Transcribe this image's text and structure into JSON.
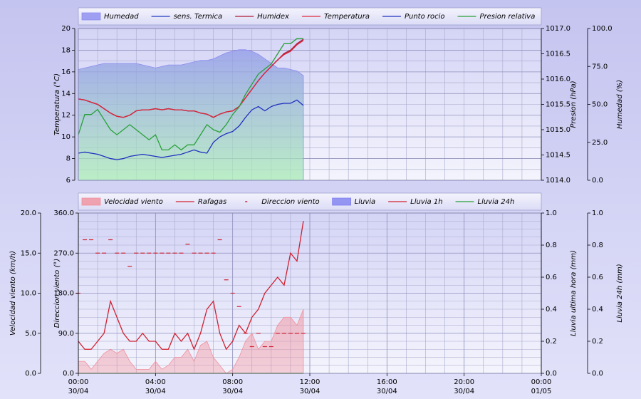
{
  "chart_data": [
    {
      "type": "line",
      "x": [
        0,
        20,
        40,
        60,
        80,
        100,
        120,
        140,
        160,
        180,
        200,
        220,
        240,
        260,
        280,
        300,
        320,
        340,
        360,
        380,
        400,
        420,
        440,
        460,
        480,
        500,
        520,
        540,
        560,
        580,
        600,
        620,
        640,
        660,
        680,
        700
      ],
      "xlim": [
        0,
        1440
      ],
      "grid": true,
      "axes": [
        {
          "label": "Temperatura (°C)",
          "lim": [
            6,
            20
          ],
          "ticks": [
            6,
            8,
            10,
            12,
            14,
            16,
            18,
            20
          ]
        },
        {
          "label": "Presion (hPa)",
          "lim": [
            1014,
            1017
          ],
          "ticks": [
            {
              "value": 1014,
              "label": "1014.0"
            },
            {
              "value": 1014.5,
              "label": "1014.5"
            },
            {
              "value": 1015,
              "label": "1015.0"
            },
            {
              "value": 1015.5,
              "label": "1015.5"
            },
            {
              "value": 1016,
              "label": "1016.0"
            },
            {
              "value": 1016.5,
              "label": "1016.5"
            },
            {
              "value": 1017,
              "label": "1017.0"
            }
          ]
        },
        {
          "label": "Humedad (%)",
          "lim": [
            0,
            100
          ],
          "ticks": [
            {
              "value": 0,
              "label": "0.0"
            },
            {
              "value": 25,
              "label": "25.0"
            },
            {
              "value": 50,
              "label": "50.0"
            },
            {
              "value": 75,
              "label": "75.0"
            },
            {
              "value": 100,
              "label": "100.0"
            }
          ]
        }
      ],
      "series": [
        {
          "name": "Humedad",
          "kind": "area",
          "axis": 2,
          "color": "#8c8cf0",
          "color2": "#a8ecb4",
          "values": [
            73,
            74,
            75,
            76,
            77,
            77,
            77,
            77,
            77,
            77,
            76,
            75,
            74,
            75,
            76,
            76,
            76,
            77,
            78,
            79,
            79,
            80,
            82,
            84,
            85,
            86,
            86,
            85,
            83,
            80,
            77,
            74,
            74,
            73,
            72,
            69
          ]
        },
        {
          "name": "sens. Termica",
          "kind": "line",
          "axis": 0,
          "color": "#2038c0",
          "values": [
            13.5,
            13.4,
            13.2,
            13.0,
            12.6,
            12.2,
            11.9,
            11.8,
            12.0,
            12.4,
            12.5,
            12.5,
            12.6,
            12.5,
            12.6,
            12.5,
            12.5,
            12.4,
            12.4,
            12.2,
            12.1,
            11.8,
            12.1,
            12.3,
            12.4,
            12.8,
            13.6,
            14.4,
            15.2,
            15.9,
            16.5,
            17.1,
            17.6,
            17.9,
            18.5,
            18.9
          ]
        },
        {
          "name": "Humidex",
          "kind": "line",
          "axis": 0,
          "color": "#b01830",
          "values": [
            13.5,
            13.4,
            13.2,
            13.0,
            12.6,
            12.2,
            11.9,
            11.8,
            12.0,
            12.4,
            12.5,
            12.5,
            12.6,
            12.5,
            12.6,
            12.5,
            12.5,
            12.4,
            12.4,
            12.2,
            12.1,
            11.8,
            12.1,
            12.3,
            12.4,
            12.8,
            13.6,
            14.4,
            15.2,
            15.9,
            16.5,
            17.1,
            17.7,
            18.0,
            18.6,
            19.0
          ]
        },
        {
          "name": "Temperatura",
          "kind": "line",
          "axis": 0,
          "color": "#e02838",
          "values": [
            13.5,
            13.4,
            13.2,
            13.0,
            12.6,
            12.2,
            11.9,
            11.8,
            12.0,
            12.4,
            12.5,
            12.5,
            12.6,
            12.5,
            12.6,
            12.5,
            12.5,
            12.4,
            12.4,
            12.2,
            12.1,
            11.8,
            12.1,
            12.3,
            12.4,
            12.8,
            13.6,
            14.4,
            15.2,
            15.9,
            16.5,
            17.1,
            17.6,
            17.9,
            18.5,
            18.9
          ]
        },
        {
          "name": "Punto rocio",
          "kind": "line",
          "axis": 0,
          "color": "#2030c0",
          "values": [
            8.5,
            8.6,
            8.5,
            8.4,
            8.2,
            8.0,
            7.9,
            8.0,
            8.2,
            8.3,
            8.4,
            8.3,
            8.2,
            8.1,
            8.2,
            8.3,
            8.4,
            8.6,
            8.8,
            8.6,
            8.5,
            9.5,
            10.0,
            10.3,
            10.5,
            11.0,
            11.8,
            12.5,
            12.8,
            12.4,
            12.8,
            13.0,
            13.1,
            13.1,
            13.4,
            12.9
          ]
        },
        {
          "name": "Presion relativa",
          "kind": "line",
          "axis": 1,
          "color": "#28a038",
          "values": [
            1014.9,
            1015.3,
            1015.3,
            1015.4,
            1015.2,
            1015.0,
            1014.9,
            1015.0,
            1015.1,
            1015.0,
            1014.9,
            1014.8,
            1014.9,
            1014.6,
            1014.6,
            1014.7,
            1014.6,
            1014.7,
            1014.7,
            1014.9,
            1015.1,
            1015.0,
            1014.95,
            1015.1,
            1015.3,
            1015.45,
            1015.7,
            1015.9,
            1016.1,
            1016.2,
            1016.3,
            1016.5,
            1016.7,
            1016.7,
            1016.8,
            1016.8
          ]
        }
      ]
    },
    {
      "type": "line",
      "x": [
        0,
        20,
        40,
        60,
        80,
        100,
        120,
        140,
        160,
        180,
        200,
        220,
        240,
        260,
        280,
        300,
        320,
        340,
        360,
        380,
        400,
        420,
        440,
        460,
        480,
        500,
        520,
        540,
        560,
        580,
        600,
        620,
        640,
        660,
        680,
        700
      ],
      "xlim": [
        0,
        1440
      ],
      "xticks": [
        {
          "value": 0,
          "label": "00:00\n30/04"
        },
        {
          "value": 240,
          "label": "04:00\n30/04"
        },
        {
          "value": 480,
          "label": "08:00\n30/04"
        },
        {
          "value": 720,
          "label": "12:00\n30/04"
        },
        {
          "value": 960,
          "label": "16:00\n30/04"
        },
        {
          "value": 1200,
          "label": "20:00\n30/04"
        },
        {
          "value": 1440,
          "label": "00:00\n01/05"
        }
      ],
      "grid": true,
      "axes": [
        {
          "label": "Velocidad viento (km/h)",
          "lim": [
            0,
            20
          ],
          "ticks": [
            {
              "value": 0,
              "label": "0.0"
            },
            {
              "value": 5,
              "label": "5.0"
            },
            {
              "value": 10,
              "label": "10.0"
            },
            {
              "value": 15,
              "label": "15.0"
            },
            {
              "value": 20,
              "label": "20.0"
            }
          ]
        },
        {
          "label": "Direccion viento (°)",
          "lim": [
            0,
            360
          ],
          "ticks": [
            {
              "value": 0,
              "label": "0.0"
            },
            {
              "value": 90,
              "label": "90.0"
            },
            {
              "value": 180,
              "label": "180.0"
            },
            {
              "value": 270,
              "label": "270.0"
            },
            {
              "value": 360,
              "label": "360.0"
            }
          ]
        },
        {
          "label": "Lluvia ultima hora (mm)",
          "lim": [
            0,
            1
          ],
          "ticks": [
            {
              "value": 0,
              "label": "0.0"
            },
            {
              "value": 0.2,
              "label": "0.2"
            },
            {
              "value": 0.4,
              "label": "0.4"
            },
            {
              "value": 0.6,
              "label": "0.6"
            },
            {
              "value": 0.8,
              "label": "0.8"
            },
            {
              "value": 1,
              "label": "1.0"
            }
          ]
        },
        {
          "label": "Lluvia 24h (mm)",
          "lim": [
            0,
            1
          ],
          "ticks": [
            {
              "value": 0,
              "label": "0.0"
            },
            {
              "value": 0.2,
              "label": "0.2"
            },
            {
              "value": 0.4,
              "label": "0.4"
            },
            {
              "value": 0.6,
              "label": "0.6"
            },
            {
              "value": 0.8,
              "label": "0.8"
            },
            {
              "value": 1,
              "label": "1.0"
            }
          ]
        }
      ],
      "series": [
        {
          "name": "Velocidad viento",
          "kind": "area",
          "axis": 0,
          "color": "#f0909c",
          "values": [
            1.5,
            1.5,
            0.5,
            1.5,
            2.5,
            3,
            2.5,
            3,
            1.5,
            0.5,
            0.5,
            0.5,
            1.5,
            0.5,
            1,
            2,
            2,
            3,
            1.5,
            3.5,
            4,
            2,
            1,
            0,
            0.5,
            2,
            4,
            5,
            3,
            4,
            4,
            6,
            7,
            7,
            6,
            8
          ]
        },
        {
          "name": "Rafagas",
          "kind": "line",
          "axis": 0,
          "color": "#d02030",
          "values": [
            4,
            3,
            3,
            4,
            5,
            9,
            7,
            5,
            4,
            4,
            5,
            4,
            4,
            3,
            3,
            5,
            4,
            5,
            3,
            5,
            8,
            9,
            5,
            3,
            4,
            6,
            5,
            7,
            8,
            10,
            11,
            12,
            11,
            15,
            14,
            19
          ]
        },
        {
          "name": "Direccion viento",
          "kind": "dash",
          "axis": 1,
          "color": "#d02030",
          "values": [
            180,
            300,
            300,
            270,
            270,
            300,
            270,
            270,
            240,
            270,
            270,
            270,
            270,
            270,
            270,
            270,
            270,
            290,
            270,
            270,
            270,
            270,
            300,
            210,
            180,
            150,
            90,
            60,
            90,
            60,
            60,
            90,
            90,
            90,
            90,
            90
          ]
        },
        {
          "name": "Lluvia",
          "kind": "area",
          "axis": 2,
          "color": "#8080f0",
          "values": [
            0,
            0,
            0,
            0,
            0,
            0,
            0,
            0,
            0,
            0,
            0,
            0,
            0,
            0,
            0,
            0,
            0,
            0,
            0,
            0,
            0,
            0,
            0,
            0,
            0,
            0,
            0,
            0,
            0,
            0,
            0,
            0,
            0,
            0,
            0,
            0
          ]
        },
        {
          "name": "Lluvia 1h",
          "kind": "line",
          "axis": 2,
          "color": "#d02030",
          "values": [
            0,
            0,
            0,
            0,
            0,
            0,
            0,
            0,
            0,
            0,
            0,
            0,
            0,
            0,
            0,
            0,
            0,
            0,
            0,
            0,
            0,
            0,
            0,
            0,
            0,
            0,
            0,
            0,
            0,
            0,
            0,
            0,
            0,
            0,
            0,
            0
          ]
        },
        {
          "name": "Lluvia 24h",
          "kind": "line",
          "axis": 3,
          "color": "#28a038",
          "values": [
            0,
            0,
            0,
            0,
            0,
            0,
            0,
            0,
            0,
            0,
            0,
            0,
            0,
            0,
            0,
            0,
            0,
            0,
            0,
            0,
            0,
            0,
            0,
            0,
            0,
            0,
            0,
            0,
            0,
            0,
            0,
            0,
            0,
            0,
            0,
            0
          ]
        }
      ]
    }
  ]
}
